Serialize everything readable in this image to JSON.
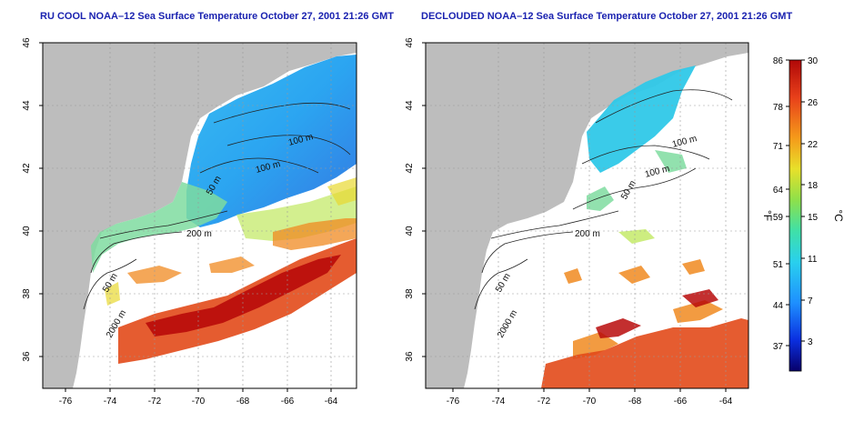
{
  "left_panel": {
    "title": "RU COOL NOAA–12 Sea Surface Temperature October 27, 2001 21:26 GMT",
    "lon_ticks": [
      "-76",
      "-74",
      "-72",
      "-70",
      "-68",
      "-66",
      "-64"
    ],
    "lat_ticks": [
      "36",
      "38",
      "40",
      "42",
      "44",
      "46"
    ],
    "isobaths": [
      "50 m",
      "100 m",
      "200 m",
      "2000 m",
      "100 m"
    ]
  },
  "right_panel": {
    "title": "DECLOUDED NOAA–12 Sea Surface Temperature October 27, 2001 21:26 GMT",
    "lon_ticks": [
      "-76",
      "-74",
      "-72",
      "-70",
      "-68",
      "-66",
      "-64"
    ],
    "lat_ticks": [
      "36",
      "38",
      "40",
      "42",
      "44",
      "46"
    ],
    "isobaths": [
      "50 m",
      "100 m",
      "200 m",
      "2000 m",
      "100 m"
    ]
  },
  "colorbar": {
    "fahrenheit_unit": "°F",
    "celsius_unit": "°C",
    "fahrenheit_ticks": [
      "86",
      "78",
      "71",
      "64",
      "59",
      "51",
      "44",
      "37"
    ],
    "celsius_ticks": [
      "30",
      "26",
      "22",
      "18",
      "15",
      "11",
      "7",
      "3"
    ],
    "colors": [
      "#08006a",
      "#0a2fe0",
      "#1e90ff",
      "#29d0ee",
      "#3fe0a8",
      "#8ee04a",
      "#e8e02a",
      "#f59a1a",
      "#e8401a",
      "#b00808"
    ]
  }
}
